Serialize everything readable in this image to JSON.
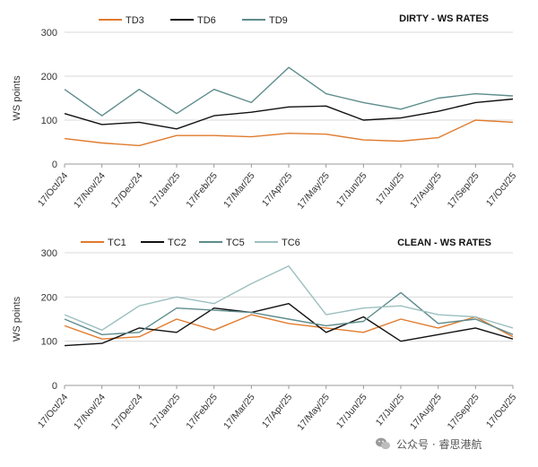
{
  "chart_data": [
    {
      "type": "line",
      "title": "DIRTY - WS RATES",
      "xlabel": "",
      "ylabel": "WS points",
      "ylim": [
        0,
        300
      ],
      "yticks": [
        0,
        100,
        200,
        300
      ],
      "grid": "horizontal",
      "legend": "top-left",
      "categories": [
        "17/Oct/24",
        "17/Nov/24",
        "17/Dec/24",
        "17/Jan/25",
        "17/Feb/25",
        "17/Mar/25",
        "17/Apr/25",
        "17/May/25",
        "17/Jun/25",
        "17/Jul/25",
        "17/Aug/25",
        "17/Sep/25",
        "17/Oct/25"
      ],
      "series": [
        {
          "name": "TD3",
          "color": "#E07B2E",
          "values": [
            58,
            48,
            42,
            65,
            65,
            62,
            70,
            68,
            55,
            52,
            60,
            100,
            95
          ]
        },
        {
          "name": "TD6",
          "color": "#111111",
          "values": [
            115,
            90,
            95,
            80,
            110,
            118,
            130,
            132,
            100,
            105,
            120,
            140,
            148
          ]
        },
        {
          "name": "TD9",
          "color": "#5E8C8C",
          "values": [
            170,
            110,
            170,
            115,
            170,
            140,
            220,
            160,
            140,
            125,
            150,
            160,
            155
          ]
        }
      ]
    },
    {
      "type": "line",
      "title": "CLEAN - WS RATES",
      "xlabel": "",
      "ylabel": "WS points",
      "ylim": [
        0,
        300
      ],
      "yticks": [
        0,
        100,
        200,
        300
      ],
      "grid": "horizontal",
      "legend": "top-left",
      "categories": [
        "17/Oct/24",
        "17/Nov/24",
        "17/Dec/24",
        "17/Jan/25",
        "17/Feb/25",
        "17/Mar/25",
        "17/Apr/25",
        "17/May/25",
        "17/Jun/25",
        "17/Jul/25",
        "17/Aug/25",
        "17/Sep/25",
        "17/Oct/25"
      ],
      "series": [
        {
          "name": "TC1",
          "color": "#E07B2E",
          "values": [
            135,
            105,
            110,
            150,
            125,
            160,
            140,
            130,
            120,
            150,
            130,
            155,
            110
          ]
        },
        {
          "name": "TC2",
          "color": "#111111",
          "values": [
            90,
            95,
            130,
            120,
            175,
            165,
            185,
            120,
            155,
            100,
            115,
            130,
            105
          ]
        },
        {
          "name": "TC5",
          "color": "#5E8C8C",
          "values": [
            150,
            115,
            120,
            175,
            170,
            165,
            150,
            135,
            145,
            210,
            140,
            150,
            115
          ]
        },
        {
          "name": "TC6",
          "color": "#9CBFBF",
          "values": [
            160,
            125,
            180,
            200,
            185,
            230,
            270,
            160,
            175,
            180,
            160,
            155,
            130
          ]
        }
      ]
    }
  ],
  "watermark": {
    "text": "公众号 · 睿思港航",
    "icon": "wechat-icon"
  }
}
